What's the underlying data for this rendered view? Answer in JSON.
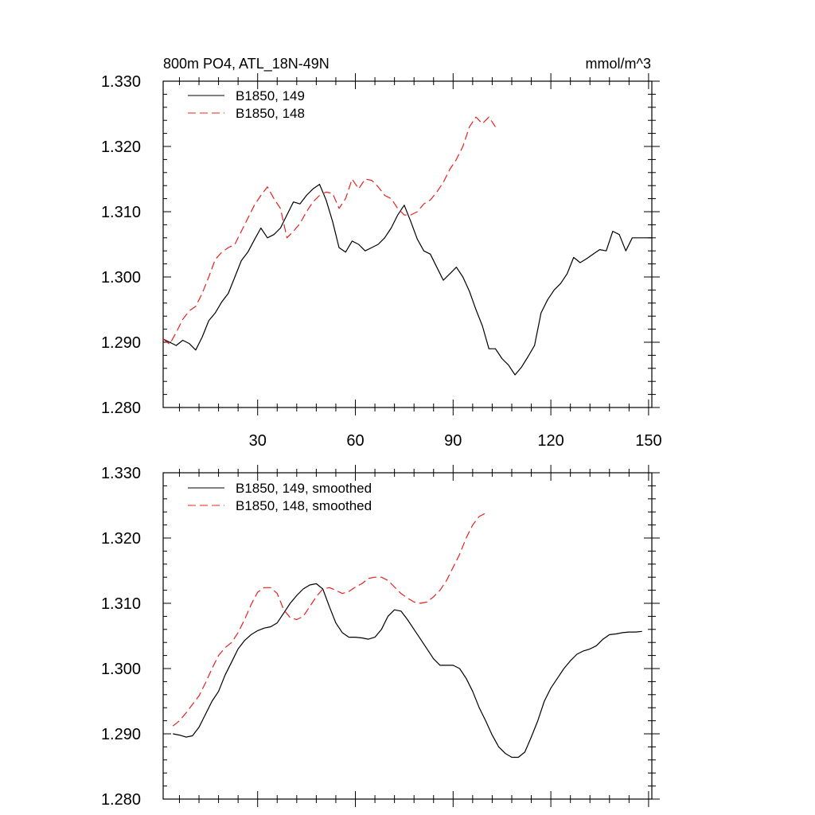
{
  "page": {
    "title": "800m PO4, ATL_18N-49N",
    "units": "mmol/m^3"
  },
  "chart_data": [
    {
      "type": "line",
      "title": "800m PO4, ATL_18N-49N",
      "units_label": "mmol/m^3",
      "xlim": [
        1,
        151
      ],
      "ylim": [
        1.28,
        1.33
      ],
      "xticks": [
        30,
        60,
        90,
        120,
        150
      ],
      "xtick_labels": [
        "30",
        "60",
        "90",
        "120",
        "150"
      ],
      "yticks": [
        1.28,
        1.29,
        1.3,
        1.31,
        1.32,
        1.33
      ],
      "ytick_labels": [
        "1.280",
        "1.290",
        "1.300",
        "1.310",
        "1.320",
        "1.330"
      ],
      "legend_position": "top-left",
      "grid": false,
      "series": [
        {
          "name": "B1850, 149",
          "color": "#000000",
          "dash": "solid",
          "x": [
            1,
            3,
            5,
            7,
            9,
            11,
            13,
            15,
            17,
            19,
            21,
            23,
            25,
            27,
            29,
            31,
            33,
            35,
            37,
            39,
            41,
            43,
            45,
            47,
            49,
            51,
            53,
            55,
            57,
            59,
            61,
            63,
            65,
            67,
            69,
            71,
            73,
            75,
            77,
            79,
            81,
            83,
            85,
            87,
            89,
            91,
            93,
            95,
            97,
            99,
            101,
            103,
            105,
            107,
            109,
            111,
            113,
            115,
            117,
            119,
            121,
            123,
            125,
            127,
            129,
            131,
            133,
            135,
            137,
            139,
            141,
            143,
            145,
            147,
            149,
            151
          ],
          "y": [
            1.2905,
            1.29,
            1.2895,
            1.2903,
            1.2898,
            1.2888,
            1.2908,
            1.2933,
            1.2945,
            1.2962,
            1.2975,
            1.3,
            1.3025,
            1.3038,
            1.3057,
            1.3075,
            1.306,
            1.3065,
            1.3075,
            1.3095,
            1.3115,
            1.3112,
            1.3125,
            1.3135,
            1.3142,
            1.3118,
            1.3085,
            1.3045,
            1.3038,
            1.3055,
            1.305,
            1.304,
            1.3045,
            1.305,
            1.306,
            1.3075,
            1.3095,
            1.311,
            1.3085,
            1.3058,
            1.304,
            1.3035,
            1.3015,
            1.2995,
            1.3005,
            1.3015,
            1.3,
            1.2978,
            1.295,
            1.2925,
            1.289,
            1.289,
            1.2875,
            1.2865,
            1.285,
            1.2862,
            1.2878,
            1.2895,
            1.2945,
            1.2965,
            1.298,
            1.299,
            1.3005,
            1.303,
            1.3022,
            1.3028,
            1.3035,
            1.3042,
            1.304,
            1.307,
            1.3065,
            1.304,
            1.306,
            1.306,
            1.306,
            1.306
          ]
        },
        {
          "name": "B1850, 148",
          "color": "#e8201e",
          "dash": "dashed",
          "x": [
            1,
            3,
            5,
            7,
            9,
            11,
            13,
            15,
            17,
            19,
            21,
            23,
            25,
            27,
            29,
            31,
            33,
            35,
            37,
            39,
            41,
            43,
            45,
            47,
            49,
            51,
            53,
            55,
            57,
            59,
            61,
            63,
            65,
            67,
            69,
            71,
            73,
            75,
            77,
            79,
            81,
            83,
            85,
            87,
            89,
            91,
            93,
            95,
            97,
            99,
            101,
            103
          ],
          "y": [
            1.2905,
            1.2897,
            1.2915,
            1.2935,
            1.2948,
            1.2955,
            1.2975,
            1.3,
            1.3027,
            1.3038,
            1.3045,
            1.305,
            1.307,
            1.309,
            1.311,
            1.3125,
            1.3138,
            1.312,
            1.3105,
            1.306,
            1.307,
            1.3082,
            1.31,
            1.3115,
            1.3125,
            1.313,
            1.3128,
            1.3105,
            1.312,
            1.315,
            1.3135,
            1.315,
            1.3148,
            1.3138,
            1.3125,
            1.312,
            1.3105,
            1.3095,
            1.3095,
            1.31,
            1.3112,
            1.3118,
            1.313,
            1.3145,
            1.3165,
            1.318,
            1.32,
            1.323,
            1.3245,
            1.3235,
            1.3245,
            1.323
          ]
        }
      ]
    },
    {
      "type": "line",
      "xlim": [
        1,
        151
      ],
      "ylim": [
        1.28,
        1.33
      ],
      "xticks": [
        30,
        60,
        90,
        120,
        150
      ],
      "yticks": [
        1.28,
        1.29,
        1.3,
        1.31,
        1.32,
        1.33
      ],
      "ytick_labels": [
        "1.280",
        "1.290",
        "1.300",
        "1.310",
        "1.320",
        "1.330"
      ],
      "legend_position": "top-left",
      "grid": false,
      "series": [
        {
          "name": "B1850, 149, smoothed",
          "color": "#000000",
          "dash": "solid",
          "x": [
            4,
            6,
            8,
            10,
            12,
            14,
            16,
            18,
            20,
            22,
            24,
            26,
            28,
            30,
            32,
            34,
            36,
            38,
            40,
            42,
            44,
            46,
            48,
            50,
            52,
            54,
            56,
            58,
            60,
            62,
            64,
            66,
            68,
            70,
            72,
            74,
            76,
            78,
            80,
            82,
            84,
            86,
            88,
            90,
            92,
            94,
            96,
            98,
            100,
            102,
            104,
            106,
            108,
            110,
            112,
            114,
            116,
            118,
            120,
            122,
            124,
            126,
            128,
            130,
            132,
            134,
            136,
            138,
            140,
            142,
            144,
            146,
            148
          ],
          "y": [
            1.29,
            1.2898,
            1.2895,
            1.2897,
            1.291,
            1.293,
            1.295,
            1.2965,
            1.299,
            1.301,
            1.303,
            1.3043,
            1.3052,
            1.3058,
            1.3062,
            1.3064,
            1.307,
            1.3085,
            1.31,
            1.3112,
            1.3122,
            1.3128,
            1.313,
            1.3122,
            1.3095,
            1.307,
            1.3055,
            1.3048,
            1.3048,
            1.3047,
            1.3045,
            1.3048,
            1.306,
            1.308,
            1.309,
            1.3088,
            1.3075,
            1.306,
            1.3045,
            1.303,
            1.3015,
            1.3005,
            1.3005,
            1.3005,
            1.3,
            1.2985,
            1.2965,
            1.294,
            1.292,
            1.2898,
            1.288,
            1.287,
            1.2864,
            1.2864,
            1.2872,
            1.2895,
            1.292,
            1.295,
            1.297,
            1.2985,
            1.3,
            1.3012,
            1.3022,
            1.3027,
            1.303,
            1.3035,
            1.3045,
            1.3052,
            1.3053,
            1.3055,
            1.3056,
            1.3056,
            1.3057
          ]
        },
        {
          "name": "B1850, 148, smoothed",
          "color": "#e8201e",
          "dash": "dashed",
          "x": [
            4,
            6,
            8,
            10,
            12,
            14,
            16,
            18,
            20,
            22,
            24,
            26,
            28,
            30,
            32,
            34,
            36,
            38,
            40,
            42,
            44,
            46,
            48,
            50,
            52,
            54,
            56,
            58,
            60,
            62,
            64,
            66,
            68,
            70,
            72,
            74,
            76,
            78,
            80,
            82,
            84,
            86,
            88,
            90,
            92,
            94,
            96,
            98,
            100
          ],
          "y": [
            1.2912,
            1.292,
            1.2932,
            1.2945,
            1.2958,
            1.2978,
            1.3,
            1.302,
            1.3032,
            1.304,
            1.3055,
            1.3075,
            1.3098,
            1.3117,
            1.3124,
            1.3124,
            1.3115,
            1.309,
            1.3078,
            1.3075,
            1.308,
            1.3095,
            1.311,
            1.3122,
            1.3124,
            1.312,
            1.3115,
            1.3118,
            1.3125,
            1.313,
            1.3138,
            1.314,
            1.314,
            1.3135,
            1.3125,
            1.3115,
            1.3108,
            1.3102,
            1.31,
            1.3102,
            1.311,
            1.312,
            1.3135,
            1.3155,
            1.3175,
            1.32,
            1.322,
            1.3233,
            1.3238
          ]
        }
      ]
    }
  ]
}
